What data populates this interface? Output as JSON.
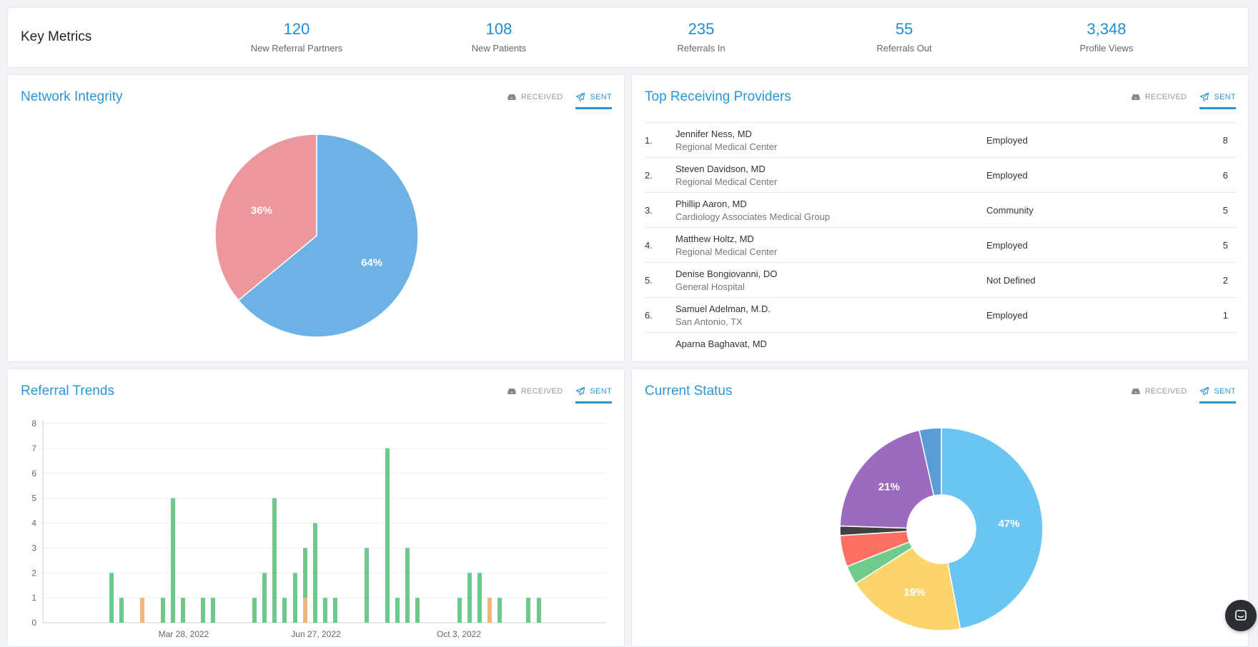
{
  "key_metrics": {
    "title": "Key Metrics",
    "items": [
      {
        "value": "120",
        "label": "New Referral Partners"
      },
      {
        "value": "108",
        "label": "New Patients"
      },
      {
        "value": "235",
        "label": "Referrals In"
      },
      {
        "value": "55",
        "label": "Referrals Out"
      },
      {
        "value": "3,348",
        "label": "Profile Views"
      }
    ]
  },
  "toggle": {
    "received": "RECEIVED",
    "sent": "SENT",
    "active": "sent"
  },
  "network_integrity": {
    "title": "Network Integrity",
    "chart_data": {
      "type": "pie",
      "slices": [
        {
          "value": 64,
          "label": "64%",
          "color": "#6cb2e4"
        },
        {
          "value": 36,
          "label": "36%",
          "color": "#ec979e"
        }
      ]
    }
  },
  "top_providers": {
    "title": "Top Receiving Providers",
    "rows": [
      {
        "rank": "1.",
        "name": "Jennifer Ness, MD",
        "org": "Regional Medical Center",
        "type": "Employed",
        "count": "8"
      },
      {
        "rank": "2.",
        "name": "Steven Davidson, MD",
        "org": "Regional Medical Center",
        "type": "Employed",
        "count": "6"
      },
      {
        "rank": "3.",
        "name": "Phillip Aaron, MD",
        "org": "Cardiology Associates Medical Group",
        "type": "Community",
        "count": "5"
      },
      {
        "rank": "4.",
        "name": "Matthew Holtz, MD",
        "org": "Regional Medical Center",
        "type": "Employed",
        "count": "5"
      },
      {
        "rank": "5.",
        "name": "Denise Bongiovanni, DO",
        "org": "General Hospital",
        "type": "Not Defined",
        "count": "2"
      },
      {
        "rank": "6.",
        "name": "Samuel Adelman, M.D.",
        "org": "San Antonio, TX",
        "type": "Employed",
        "count": "1"
      },
      {
        "rank": "",
        "name": "Aparna Baghavat, MD",
        "org": "",
        "type": "",
        "count": ""
      }
    ]
  },
  "referral_trends": {
    "title": "Referral Trends",
    "chart_data": {
      "type": "bar",
      "ylim": [
        0,
        8
      ],
      "yticks": [
        0,
        1,
        2,
        3,
        4,
        5,
        6,
        7,
        8
      ],
      "x_labels": [
        "Mar 28, 2022",
        "Jun 27, 2022",
        "Oct 3, 2022"
      ],
      "colors": {
        "green": "#6cc98a",
        "orange": "#f3b47a"
      },
      "bars": [
        {
          "green": 2,
          "orange": 0
        },
        {
          "green": 1,
          "orange": 0
        },
        {
          "green": 0,
          "orange": 1
        },
        {
          "green": 1,
          "orange": 0
        },
        {
          "green": 5,
          "orange": 0
        },
        {
          "green": 1,
          "orange": 0
        },
        {
          "green": 1,
          "orange": 0
        },
        {
          "green": 1,
          "orange": 0
        },
        {
          "green": 1,
          "orange": 0
        },
        {
          "green": 2,
          "orange": 0
        },
        {
          "green": 5,
          "orange": 0
        },
        {
          "green": 1,
          "orange": 0
        },
        {
          "green": 2,
          "orange": 0
        },
        {
          "green": 2,
          "orange": 1
        },
        {
          "green": 4,
          "orange": 0
        },
        {
          "green": 1,
          "orange": 0
        },
        {
          "green": 1,
          "orange": 0
        },
        {
          "green": 3,
          "orange": 0
        },
        {
          "green": 7,
          "orange": 0
        },
        {
          "green": 1,
          "orange": 0
        },
        {
          "green": 3,
          "orange": 0
        },
        {
          "green": 1,
          "orange": 0
        },
        {
          "green": 1,
          "orange": 0
        },
        {
          "green": 2,
          "orange": 0
        },
        {
          "green": 2,
          "orange": 0
        },
        {
          "green": 0,
          "orange": 1
        },
        {
          "green": 1,
          "orange": 0
        },
        {
          "green": 1,
          "orange": 0
        },
        {
          "green": 1,
          "orange": 0
        }
      ]
    }
  },
  "current_status": {
    "title": "Current Status",
    "chart_data": {
      "type": "pie",
      "donut": true,
      "slices": [
        {
          "value": 47,
          "label": "47%",
          "color": "#6bc5f2"
        },
        {
          "value": 19,
          "label": "19%",
          "color": "#fcd46c"
        },
        {
          "value": 3,
          "label": "",
          "color": "#6ecb8c"
        },
        {
          "value": 5,
          "label": "",
          "color": "#fd6f62"
        },
        {
          "value": 1.5,
          "label": "",
          "color": "#404040"
        },
        {
          "value": 21,
          "label": "21%",
          "color": "#9b6bbf"
        },
        {
          "value": 3.5,
          "label": "",
          "color": "#5b9bd8"
        }
      ]
    }
  }
}
